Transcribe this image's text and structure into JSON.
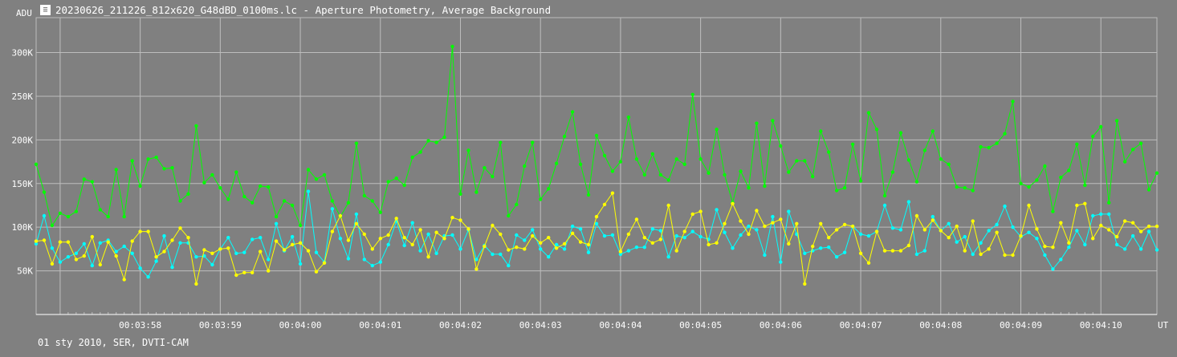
{
  "window": {
    "icon": "photometry-app-icon",
    "title": "20230626_211226_812x620_G48dBD_0100ms.lc - Aperture Photometry, Average Background"
  },
  "footer": {
    "text": "01 sty 2010, SER, DVTI-CAM"
  },
  "colors": {
    "background": "#808080",
    "grid": "#bdbdbd",
    "axis_text": "#ffffff",
    "series_green": "#00ff00",
    "series_cyan": "#00ffff",
    "series_yellow": "#ffff00"
  },
  "chart_data": {
    "type": "line",
    "ylabel": "ADU",
    "xlabel": "UT",
    "ylim": [
      0,
      340000
    ],
    "y_ticks": [
      {
        "value": 50000,
        "label": "50K"
      },
      {
        "value": 100000,
        "label": "100K"
      },
      {
        "value": 150000,
        "label": "150K"
      },
      {
        "value": 200000,
        "label": "200K"
      },
      {
        "value": 250000,
        "label": "250K"
      },
      {
        "value": 300000,
        "label": "300K"
      }
    ],
    "x_unit": "seconds after 00:03:57",
    "xlim": [
      -0.3,
      13.7
    ],
    "x_ticks": [
      {
        "value": 1,
        "label": "00:03:58"
      },
      {
        "value": 2,
        "label": "00:03:59"
      },
      {
        "value": 3,
        "label": "00:04:00"
      },
      {
        "value": 4,
        "label": "00:04:01"
      },
      {
        "value": 5,
        "label": "00:04:02"
      },
      {
        "value": 6,
        "label": "00:04:03"
      },
      {
        "value": 7,
        "label": "00:04:04"
      },
      {
        "value": 8,
        "label": "00:04:05"
      },
      {
        "value": 9,
        "label": "00:04:06"
      },
      {
        "value": 10,
        "label": "00:04:07"
      },
      {
        "value": 11,
        "label": "00:04:08"
      },
      {
        "value": 12,
        "label": "00:04:09"
      },
      {
        "value": 13,
        "label": "00:04:10"
      }
    ],
    "grid": true,
    "sample_interval": 0.1,
    "series": [
      {
        "color": "#00ff00",
        "values": [
          172000,
          140000,
          102000,
          116000,
          112000,
          118000,
          155000,
          152000,
          120000,
          112000,
          166000,
          112000,
          176000,
          147000,
          178000,
          180000,
          167000,
          168000,
          130000,
          138000,
          216000,
          151000,
          160000,
          145000,
          132000,
          163000,
          135000,
          128000,
          147000,
          146000,
          112000,
          130000,
          125000,
          102000,
          166000,
          155000,
          160000,
          130000,
          112000,
          128000,
          196000,
          136000,
          130000,
          117000,
          152000,
          156000,
          148000,
          180000,
          186000,
          199000,
          197000,
          203000,
          307000,
          138000,
          188000,
          140000,
          168000,
          158000,
          197000,
          113000,
          126000,
          170000,
          197000,
          132000,
          144000,
          173000,
          204000,
          232000,
          172000,
          137000,
          205000,
          182000,
          164000,
          175000,
          226000,
          178000,
          160000,
          184000,
          160000,
          154000,
          178000,
          172000,
          252000,
          178000,
          162000,
          212000,
          160000,
          128000,
          164000,
          145000,
          219000,
          147000,
          222000,
          193000,
          163000,
          176000,
          176000,
          158000,
          210000,
          186000,
          142000,
          145000,
          195000,
          153000,
          231000,
          212000,
          136000,
          163000,
          208000,
          177000,
          152000,
          188000,
          210000,
          178000,
          172000,
          146000,
          145000,
          142000,
          192000,
          191000,
          196000,
          207000,
          244000,
          150000,
          146000,
          154000,
          170000,
          118000,
          157000,
          165000,
          195000,
          148000,
          204000,
          215000,
          128000,
          222000,
          175000,
          189000,
          196000,
          143000,
          162000
        ],
        "markers": true
      },
      {
        "color": "#00ffff",
        "values": [
          81000,
          113000,
          76000,
          60000,
          66000,
          70000,
          81000,
          56000,
          82000,
          85000,
          72000,
          78000,
          70000,
          53000,
          43000,
          61000,
          90000,
          54000,
          82000,
          82000,
          66000,
          67000,
          57000,
          75000,
          88000,
          70000,
          71000,
          86000,
          88000,
          63000,
          104000,
          73000,
          89000,
          58000,
          141000,
          71000,
          60000,
          121000,
          87000,
          64000,
          115000,
          63000,
          56000,
          60000,
          80000,
          107000,
          79000,
          105000,
          73000,
          92000,
          70000,
          90000,
          91000,
          75000,
          97000,
          63000,
          79000,
          69000,
          69000,
          56000,
          91000,
          85000,
          97000,
          75000,
          66000,
          80000,
          75000,
          101000,
          98000,
          71000,
          104000,
          90000,
          91000,
          69000,
          73000,
          77000,
          77000,
          98000,
          96000,
          66000,
          90000,
          88000,
          95000,
          89000,
          86000,
          120000,
          94000,
          76000,
          91000,
          101000,
          97000,
          68000,
          112000,
          60000,
          118000,
          92000,
          70000,
          73000,
          76000,
          77000,
          66000,
          71000,
          101000,
          92000,
          90000,
          95000,
          125000,
          99000,
          97000,
          129000,
          69000,
          73000,
          112000,
          96000,
          104000,
          83000,
          89000,
          69000,
          82000,
          96000,
          103000,
          124000,
          100000,
          89000,
          94000,
          87000,
          68000,
          52000,
          63000,
          77000,
          96000,
          80000,
          113000,
          115000,
          115000,
          80000,
          75000,
          90000,
          75000,
          95000,
          74000
        ],
        "markers": true
      },
      {
        "color": "#ffff00",
        "values": [
          84000,
          85000,
          58000,
          83000,
          83000,
          63000,
          67000,
          89000,
          57000,
          83000,
          67000,
          40000,
          84000,
          95000,
          95000,
          66000,
          72000,
          85000,
          99000,
          88000,
          35000,
          74000,
          70000,
          75000,
          76000,
          45000,
          48000,
          48000,
          72000,
          50000,
          84000,
          74000,
          80000,
          82000,
          73000,
          49000,
          59000,
          95000,
          113000,
          85000,
          104000,
          92000,
          75000,
          87000,
          91000,
          110000,
          88000,
          80000,
          97000,
          66000,
          94000,
          87000,
          111000,
          108000,
          98000,
          52000,
          78000,
          102000,
          92000,
          74000,
          77000,
          75000,
          90000,
          82000,
          88000,
          76000,
          81000,
          93000,
          83000,
          80000,
          112000,
          126000,
          139000,
          72000,
          92000,
          109000,
          88000,
          82000,
          86000,
          125000,
          73000,
          95000,
          115000,
          118000,
          80000,
          82000,
          104000,
          127000,
          107000,
          92000,
          119000,
          101000,
          105000,
          109000,
          81000,
          104000,
          35000,
          78000,
          104000,
          88000,
          97000,
          103000,
          101000,
          70000,
          59000,
          95000,
          73000,
          73000,
          73000,
          79000,
          113000,
          97000,
          108000,
          96000,
          88000,
          101000,
          73000,
          107000,
          69000,
          75000,
          94000,
          68000,
          68000,
          90000,
          125000,
          98000,
          78000,
          77000,
          105000,
          82000,
          125000,
          127000,
          87000,
          102000,
          97000,
          89000,
          107000,
          105000,
          95000,
          101000,
          101000
        ],
        "markers": true
      }
    ]
  }
}
